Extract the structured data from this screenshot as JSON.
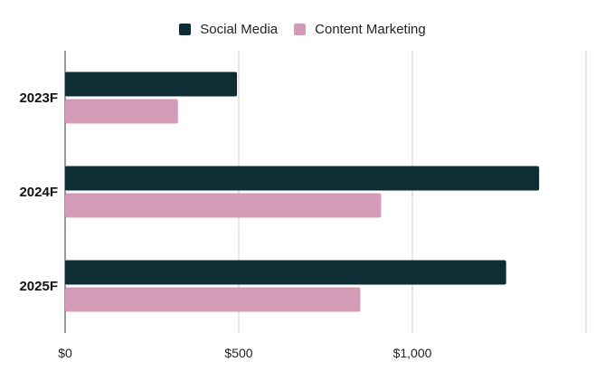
{
  "chart_data": {
    "type": "bar",
    "orientation": "horizontal",
    "categories": [
      "2023F",
      "2024F",
      "2025F"
    ],
    "series": [
      {
        "name": "Social Media",
        "color": "#0f2d35",
        "values": [
          495,
          1365,
          1270
        ]
      },
      {
        "name": "Content Marketing",
        "color": "#d39bb5",
        "values": [
          325,
          910,
          850
        ]
      }
    ],
    "xlim": [
      0,
      1500
    ],
    "xticks": [
      0,
      500,
      1000,
      1500
    ],
    "xtick_labels": [
      "$0",
      "$500",
      "$1,000",
      ""
    ],
    "grid": true,
    "legend_position": "top"
  }
}
